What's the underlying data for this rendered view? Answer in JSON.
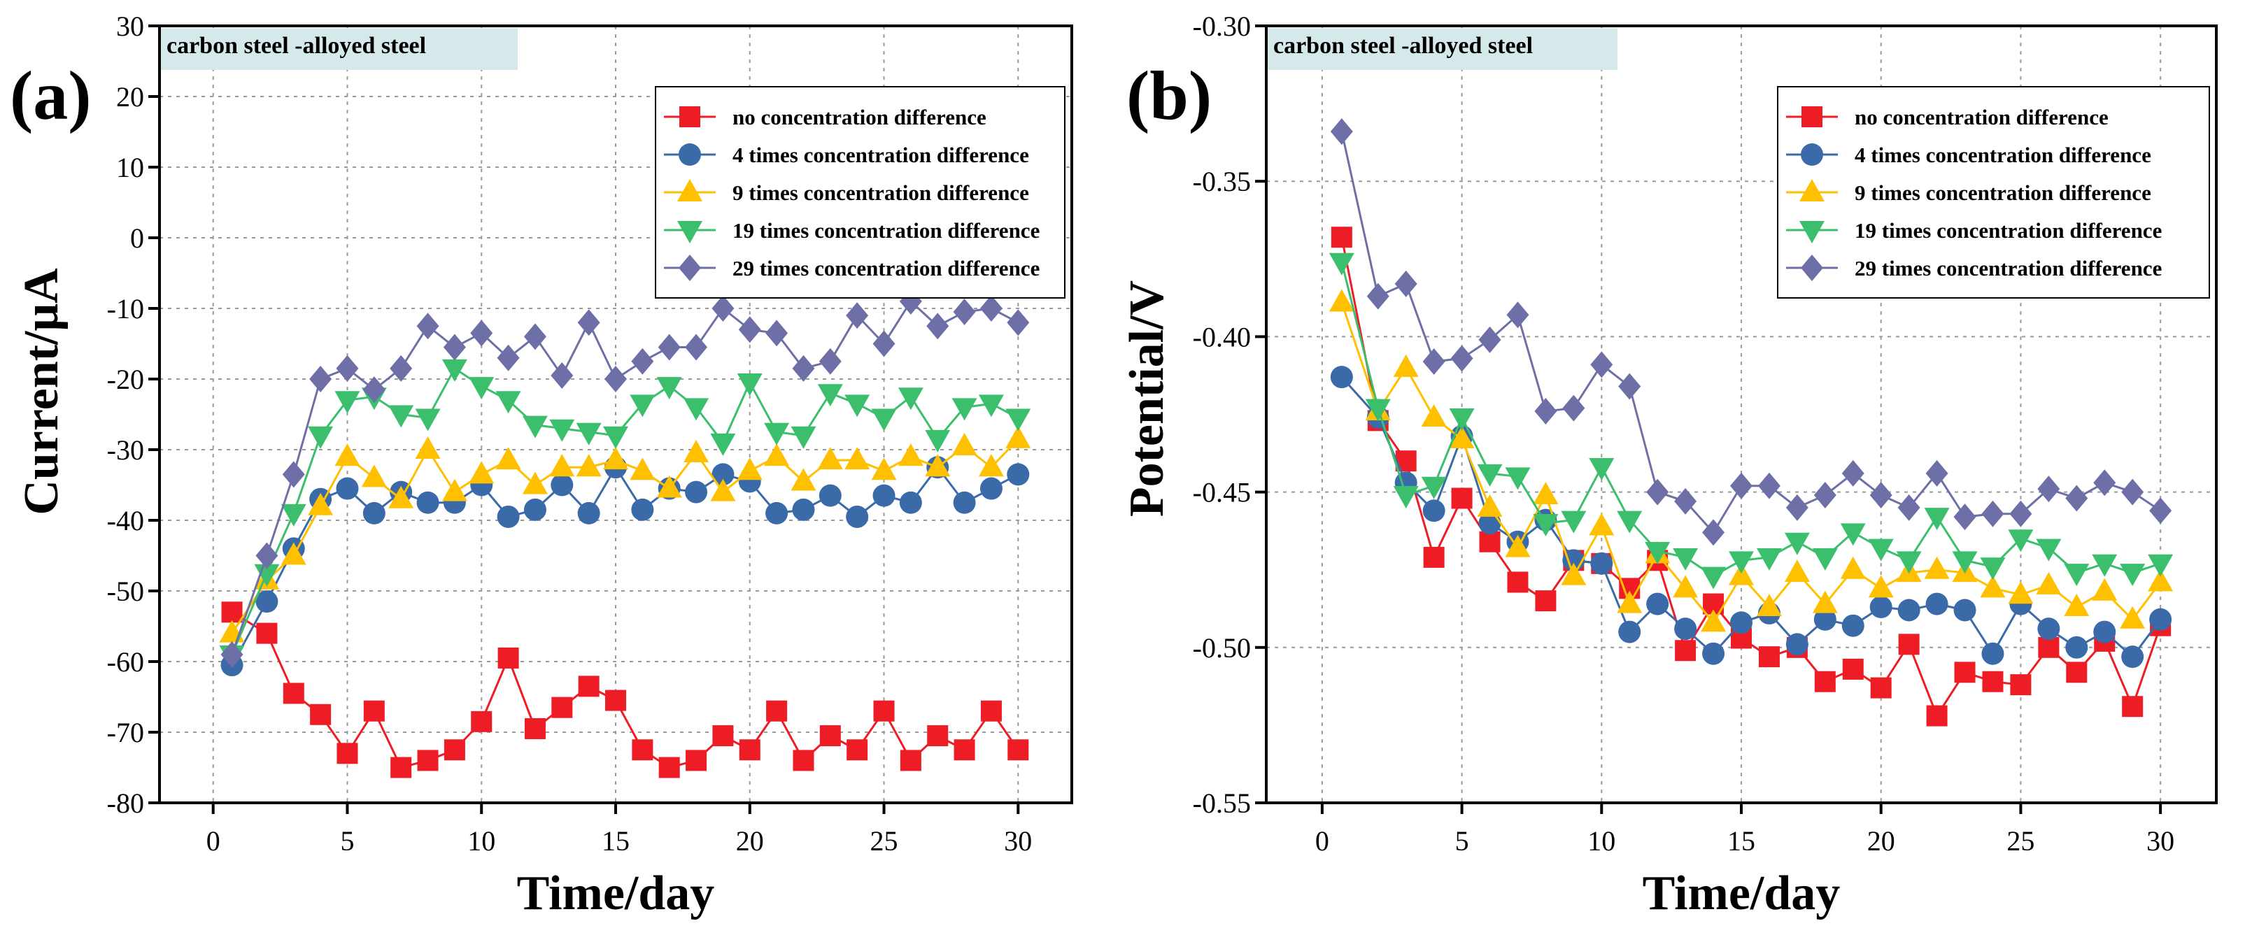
{
  "chart_data": [
    {
      "type": "line",
      "panel_label": "(a)",
      "title": "",
      "annotation": "carbon steel -alloyed steel",
      "xlabel": "Time/day",
      "ylabel": "Current/μA",
      "xlim": [
        -2,
        32
      ],
      "ylim": [
        -80,
        30
      ],
      "xticks": [
        0,
        5,
        10,
        15,
        20,
        25,
        30
      ],
      "yticks": [
        -80,
        -70,
        -60,
        -50,
        -40,
        -30,
        -20,
        -10,
        0,
        10,
        20,
        30
      ],
      "grid": true,
      "legend_position": "top-right",
      "x": [
        0.7,
        2,
        3,
        4,
        5,
        6,
        7,
        8,
        9,
        10,
        11,
        12,
        13,
        14,
        15,
        16,
        17,
        18,
        19,
        20,
        21,
        22,
        23,
        24,
        25,
        26,
        27,
        28,
        29,
        30
      ],
      "series": [
        {
          "name": "no concentration difference",
          "color": "#ee1c25",
          "marker": "square",
          "values": [
            -53,
            -56,
            -64.5,
            -67.5,
            -73,
            -67,
            -75,
            -74,
            -72.5,
            -68.5,
            -59.5,
            -69.5,
            -66.5,
            -63.5,
            -65.5,
            -72.5,
            -75,
            -74,
            -70.5,
            -72.5,
            -67,
            -74,
            -70.5,
            -72.5,
            -67,
            -74,
            -70.5,
            -72.5,
            -67,
            -72.5
          ]
        },
        {
          "name": "4 times concentration difference",
          "color": "#3a6aa8",
          "marker": "circle",
          "values": [
            -60.5,
            -51.5,
            -44,
            -37,
            -35.5,
            -39,
            -36,
            -37.5,
            -37.5,
            -35,
            -39.5,
            -38.5,
            -35,
            -39,
            -32.5,
            -38.5,
            -35.5,
            -36,
            -33.5,
            -34.5,
            -39,
            -38.5,
            -36.5,
            -39.5,
            -36.5,
            -37.5,
            -32.5,
            -37.5,
            -35.5,
            -33.5
          ]
        },
        {
          "name": "9 times concentration difference",
          "color": "#ffc000",
          "marker": "triangle-up",
          "values": [
            -56,
            -48.5,
            -45,
            -38,
            -31,
            -34,
            -37,
            -30,
            -36,
            -33.5,
            -31.5,
            -35,
            -32.5,
            -32.5,
            -31.5,
            -33,
            -35.5,
            -30.5,
            -36,
            -33,
            -31,
            -34.5,
            -31.5,
            -31.5,
            -33,
            -31,
            -32.5,
            -29.5,
            -32.5,
            -28.5
          ]
        },
        {
          "name": "19 times concentration difference",
          "color": "#3cbf6d",
          "marker": "triangle-down",
          "values": [
            -59,
            -47.5,
            -39,
            -28,
            -23,
            -22.5,
            -25,
            -25.5,
            -18.5,
            -21,
            -23,
            -26.5,
            -27,
            -27.5,
            -28,
            -23.5,
            -21,
            -24,
            -29,
            -20.5,
            -27.5,
            -28,
            -22,
            -23.5,
            -25.5,
            -22.5,
            -28.5,
            -24,
            -23.5,
            -25.5
          ]
        },
        {
          "name": "29 times concentration difference",
          "color": "#6e6fa7",
          "marker": "diamond",
          "values": [
            -59,
            -45,
            -33.5,
            -20,
            -18.5,
            -21.5,
            -18.5,
            -12.5,
            -15.5,
            -13.5,
            -17,
            -14,
            -19.5,
            -12,
            -20,
            -17.5,
            -15.5,
            -15.5,
            -10,
            -13,
            -13.5,
            -18.5,
            -17.5,
            -11,
            -15,
            -9,
            -12.5,
            -10.5,
            -10,
            -12
          ]
        }
      ]
    },
    {
      "type": "line",
      "panel_label": "(b)",
      "title": "",
      "annotation": "carbon steel -alloyed steel",
      "xlabel": "Time/day",
      "ylabel": "Potential/V",
      "xlim": [
        -2,
        32
      ],
      "ylim": [
        -0.55,
        -0.3
      ],
      "xticks": [
        0,
        5,
        10,
        15,
        20,
        25,
        30
      ],
      "yticks": [
        -0.55,
        -0.5,
        -0.45,
        -0.4,
        -0.35,
        -0.3
      ],
      "ytick_labels": [
        "-0.55",
        "-0.50",
        "-0.45",
        "-0.40",
        "-0.35",
        "-0.30"
      ],
      "grid": true,
      "legend_position": "top-right",
      "x": [
        0.7,
        2,
        3,
        4,
        5,
        6,
        7,
        8,
        9,
        10,
        11,
        12,
        13,
        14,
        15,
        16,
        17,
        18,
        19,
        20,
        21,
        22,
        23,
        24,
        25,
        26,
        27,
        28,
        29,
        30
      ],
      "series": [
        {
          "name": "no concentration difference",
          "color": "#ee1c25",
          "marker": "square",
          "values": [
            -0.368,
            -0.427,
            -0.44,
            -0.471,
            -0.452,
            -0.466,
            -0.479,
            -0.485,
            -0.472,
            -0.473,
            -0.481,
            -0.472,
            -0.501,
            -0.486,
            -0.497,
            -0.503,
            -0.5,
            -0.511,
            -0.507,
            -0.513,
            -0.499,
            -0.522,
            -0.508,
            -0.511,
            -0.512,
            -0.5,
            -0.508,
            -0.498,
            -0.519,
            -0.493
          ]
        },
        {
          "name": "4 times concentration difference",
          "color": "#3a6aa8",
          "marker": "circle",
          "values": [
            -0.413,
            -0.426,
            -0.447,
            -0.456,
            -0.432,
            -0.46,
            -0.466,
            -0.459,
            -0.472,
            -0.473,
            -0.495,
            -0.486,
            -0.494,
            -0.502,
            -0.492,
            -0.489,
            -0.499,
            -0.491,
            -0.493,
            -0.487,
            -0.488,
            -0.486,
            -0.488,
            -0.502,
            -0.486,
            -0.494,
            -0.5,
            -0.495,
            -0.503,
            -0.491
          ]
        },
        {
          "name": "9 times concentration difference",
          "color": "#ffc000",
          "marker": "triangle-up",
          "values": [
            -0.389,
            -0.424,
            -0.41,
            -0.426,
            -0.433,
            -0.455,
            -0.468,
            -0.451,
            -0.477,
            -0.461,
            -0.486,
            -0.47,
            -0.481,
            -0.492,
            -0.477,
            -0.487,
            -0.476,
            -0.486,
            -0.475,
            -0.481,
            -0.476,
            -0.475,
            -0.476,
            -0.481,
            -0.483,
            -0.48,
            -0.487,
            -0.482,
            -0.491,
            -0.479
          ]
        },
        {
          "name": "19 times concentration difference",
          "color": "#3cbf6d",
          "marker": "triangle-down",
          "values": [
            -0.376,
            -0.423,
            -0.451,
            -0.448,
            -0.426,
            -0.444,
            -0.445,
            -0.46,
            -0.459,
            -0.442,
            -0.459,
            -0.469,
            -0.471,
            -0.477,
            -0.472,
            -0.471,
            -0.466,
            -0.471,
            -0.463,
            -0.468,
            -0.472,
            -0.458,
            -0.472,
            -0.474,
            -0.465,
            -0.468,
            -0.476,
            -0.473,
            -0.476,
            -0.473
          ]
        },
        {
          "name": "29 times concentration difference",
          "color": "#6e6fa7",
          "marker": "diamond",
          "values": [
            -0.334,
            -0.387,
            -0.383,
            -0.408,
            -0.407,
            -0.401,
            -0.393,
            -0.424,
            -0.423,
            -0.409,
            -0.416,
            -0.45,
            -0.453,
            -0.463,
            -0.448,
            -0.448,
            -0.455,
            -0.451,
            -0.444,
            -0.451,
            -0.455,
            -0.444,
            -0.458,
            -0.457,
            -0.457,
            -0.449,
            -0.452,
            -0.447,
            -0.45,
            -0.456
          ]
        }
      ]
    }
  ]
}
